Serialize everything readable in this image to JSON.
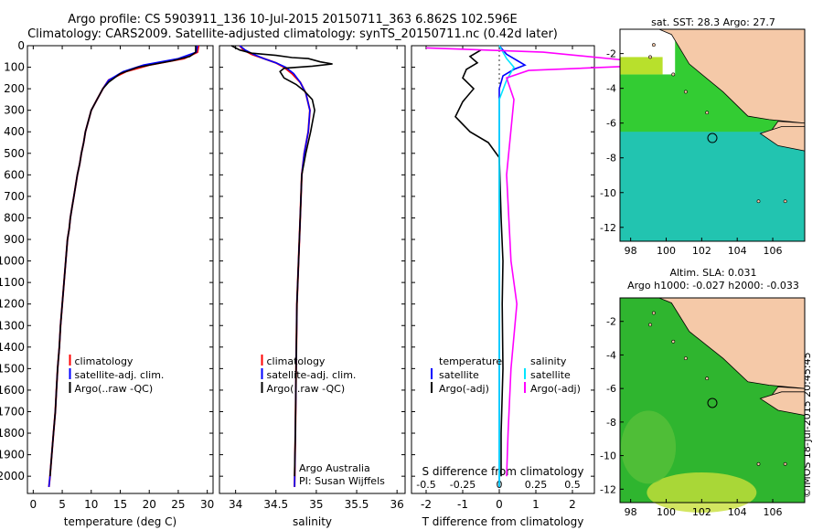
{
  "header": {
    "title_line1": "Argo profile: CS 5903911_136 10-Jul-2015 20150711_363 6.862S 102.596E",
    "title_line2": "Climatology: CARS2009. Satellite-adjusted climatology: synTS_20150711.nc (0.42d later)"
  },
  "colors": {
    "climatology": "#ff0000",
    "satellite": "#0000ff",
    "argo": "#000000",
    "sal_satellite": "#00e5ff",
    "sal_argo": "#ff00ff",
    "land": "#f5c9a8",
    "sst_green": "#33cc33",
    "sst_cyan": "#22c4b0",
    "sla_green": "#2fb52f"
  },
  "sidebar_text": "©IMOS 18-Jul-2015 20:45:45",
  "chart_data": [
    {
      "type": "line",
      "panel": "temperature",
      "xlabel": "temperature (deg C)",
      "ylabel": "",
      "xlim": [
        -1,
        31
      ],
      "ylim": [
        2080,
        0
      ],
      "xticks": [
        0,
        5,
        10,
        15,
        20,
        25,
        30
      ],
      "yticks": [
        0,
        100,
        200,
        300,
        400,
        500,
        600,
        700,
        800,
        900,
        1000,
        1100,
        1200,
        1300,
        1400,
        1500,
        1600,
        1700,
        1800,
        1900,
        2000
      ],
      "legend": [
        "climatology",
        "satellite-adj. clim.",
        "Argo(..raw -QC)"
      ],
      "legend_location": "lower-center",
      "series": [
        {
          "name": "climatology",
          "points": [
            [
              28.5,
              0
            ],
            [
              28.3,
              30
            ],
            [
              26,
              60
            ],
            [
              20,
              90
            ],
            [
              16,
              120
            ],
            [
              13,
              160
            ],
            [
              12,
              200
            ],
            [
              11,
              250
            ],
            [
              10,
              300
            ],
            [
              9.5,
              350
            ],
            [
              9,
              400
            ],
            [
              8.7,
              450
            ],
            [
              8.3,
              500
            ],
            [
              8,
              550
            ],
            [
              7.6,
              600
            ],
            [
              7.3,
              650
            ],
            [
              7,
              700
            ],
            [
              6.7,
              750
            ],
            [
              6.4,
              800
            ],
            [
              6.2,
              850
            ],
            [
              5.9,
              900
            ],
            [
              5.6,
              1000
            ],
            [
              5.3,
              1100
            ],
            [
              5,
              1200
            ],
            [
              4.7,
              1300
            ],
            [
              4.5,
              1400
            ],
            [
              4.2,
              1500
            ],
            [
              4,
              1600
            ],
            [
              3.8,
              1700
            ],
            [
              3.5,
              1800
            ],
            [
              3.2,
              1900
            ],
            [
              2.9,
              2000
            ],
            [
              2.7,
              2050
            ]
          ]
        },
        {
          "name": "satellite-adj. clim.",
          "points": [
            [
              28.3,
              0
            ],
            [
              28.1,
              30
            ],
            [
              25,
              60
            ],
            [
              19,
              90
            ],
            [
              15.5,
              120
            ],
            [
              13,
              160
            ],
            [
              12,
              200
            ],
            [
              11,
              250
            ],
            [
              10,
              300
            ],
            [
              9.5,
              350
            ],
            [
              9,
              400
            ],
            [
              8.7,
              450
            ],
            [
              8.3,
              500
            ],
            [
              8,
              550
            ],
            [
              7.6,
              600
            ],
            [
              7.3,
              650
            ],
            [
              7,
              700
            ],
            [
              6.7,
              750
            ],
            [
              6.4,
              800
            ],
            [
              6.2,
              850
            ],
            [
              5.9,
              900
            ],
            [
              5.6,
              1000
            ],
            [
              5.3,
              1100
            ],
            [
              5,
              1200
            ],
            [
              4.7,
              1300
            ],
            [
              4.5,
              1400
            ],
            [
              4.2,
              1500
            ],
            [
              4,
              1600
            ],
            [
              3.8,
              1700
            ],
            [
              3.5,
              1800
            ],
            [
              3.2,
              1900
            ],
            [
              2.9,
              2000
            ],
            [
              2.7,
              2050
            ]
          ]
        },
        {
          "name": "Argo(..raw -QC)",
          "points": [
            [
              28,
              0
            ],
            [
              28,
              30
            ],
            [
              27,
              50
            ],
            [
              24,
              70
            ],
            [
              18,
              100
            ],
            [
              15,
              130
            ],
            [
              13,
              170
            ],
            [
              12,
              200
            ],
            [
              11,
              250
            ],
            [
              10,
              300
            ],
            [
              9.5,
              350
            ],
            [
              9,
              400
            ],
            [
              8.7,
              450
            ],
            [
              8.3,
              500
            ],
            [
              8,
              550
            ],
            [
              7.6,
              600
            ],
            [
              7.3,
              650
            ],
            [
              7,
              700
            ],
            [
              6.7,
              750
            ],
            [
              6.4,
              800
            ],
            [
              6.2,
              850
            ],
            [
              5.9,
              900
            ],
            [
              5.6,
              1000
            ],
            [
              5.3,
              1100
            ],
            [
              5,
              1200
            ],
            [
              4.7,
              1300
            ],
            [
              4.5,
              1400
            ],
            [
              4.2,
              1500
            ],
            [
              4,
              1600
            ],
            [
              3.8,
              1700
            ],
            [
              3.5,
              1800
            ],
            [
              3.2,
              1900
            ],
            [
              2.9,
              2000
            ]
          ]
        }
      ]
    },
    {
      "type": "line",
      "panel": "salinity",
      "xlabel": "salinity",
      "ylabel": "",
      "xlim": [
        33.8,
        36.1
      ],
      "ylim": [
        2080,
        0
      ],
      "xticks": [
        34,
        34.5,
        35,
        35.5,
        36
      ],
      "xticklabels": [
        "34",
        "34.5",
        "35",
        "35.5",
        "36"
      ],
      "legend": [
        "climatology",
        "satellite-adj. clim.",
        "Argo(..raw -QC)"
      ],
      "legend_location": "lower-center",
      "annotation": [
        "Argo Australia",
        "PI: Susan Wijffels"
      ],
      "series": [
        {
          "name": "climatology",
          "points": [
            [
              34.05,
              0
            ],
            [
              34.1,
              20
            ],
            [
              34.2,
              40
            ],
            [
              34.35,
              60
            ],
            [
              34.5,
              80
            ],
            [
              34.6,
              100
            ],
            [
              34.7,
              130
            ],
            [
              34.8,
              170
            ],
            [
              34.87,
              220
            ],
            [
              34.92,
              300
            ],
            [
              34.9,
              400
            ],
            [
              34.85,
              500
            ],
            [
              34.82,
              600
            ],
            [
              34.8,
              800
            ],
            [
              34.78,
              1000
            ],
            [
              34.76,
              1200
            ],
            [
              34.75,
              1500
            ],
            [
              34.74,
              1800
            ],
            [
              34.73,
              2050
            ]
          ]
        },
        {
          "name": "satellite-adj. clim.",
          "points": [
            [
              34.05,
              0
            ],
            [
              34.12,
              20
            ],
            [
              34.22,
              40
            ],
            [
              34.35,
              60
            ],
            [
              34.5,
              80
            ],
            [
              34.62,
              100
            ],
            [
              34.72,
              130
            ],
            [
              34.8,
              170
            ],
            [
              34.87,
              220
            ],
            [
              34.92,
              300
            ],
            [
              34.9,
              400
            ],
            [
              34.85,
              500
            ],
            [
              34.82,
              600
            ],
            [
              34.8,
              800
            ],
            [
              34.78,
              1000
            ],
            [
              34.76,
              1200
            ],
            [
              34.75,
              1500
            ],
            [
              34.74,
              1800
            ],
            [
              34.73,
              2050
            ]
          ]
        },
        {
          "name": "Argo(..raw -QC)",
          "points": [
            [
              33.95,
              0
            ],
            [
              34.0,
              10
            ],
            [
              34.05,
              20
            ],
            [
              34.2,
              35
            ],
            [
              34.5,
              45
            ],
            [
              34.7,
              55
            ],
            [
              34.9,
              60
            ],
            [
              35.05,
              75
            ],
            [
              35.2,
              85
            ],
            [
              34.95,
              95
            ],
            [
              34.6,
              105
            ],
            [
              34.55,
              120
            ],
            [
              34.6,
              150
            ],
            [
              34.75,
              180
            ],
            [
              34.85,
              210
            ],
            [
              34.95,
              250
            ],
            [
              34.98,
              300
            ],
            [
              34.93,
              400
            ],
            [
              34.87,
              500
            ],
            [
              34.82,
              600
            ],
            [
              34.8,
              800
            ],
            [
              34.78,
              1000
            ],
            [
              34.76,
              1200
            ],
            [
              34.75,
              1500
            ],
            [
              34.74,
              1800
            ],
            [
              34.73,
              2000
            ]
          ]
        }
      ]
    },
    {
      "type": "line",
      "panel": "difference",
      "xlabel": "T difference from climatology",
      "x2label": "S difference from climatology",
      "xlim": [
        -2.4,
        2.6
      ],
      "ylim": [
        2080,
        0
      ],
      "xticks": [
        -2,
        -1,
        0,
        1,
        2
      ],
      "x2ticks": [
        -0.5,
        -0.25,
        0,
        0.25,
        0.5
      ],
      "legend_temperature": [
        "temperature",
        "satellite",
        "Argo(-adj)"
      ],
      "legend_salinity": [
        "salinity",
        "satellite",
        "Argo(-adj)"
      ],
      "series": [
        {
          "name": "satellite",
          "points": [
            [
              0,
              0
            ],
            [
              0.2,
              40
            ],
            [
              0.5,
              70
            ],
            [
              0.7,
              90
            ],
            [
              0.4,
              110
            ],
            [
              0.1,
              140
            ],
            [
              0,
              200
            ],
            [
              0,
              2050
            ]
          ]
        },
        {
          "name": "Argo(-adj)",
          "points": [
            [
              -0.5,
              20
            ],
            [
              -0.8,
              50
            ],
            [
              -0.6,
              80
            ],
            [
              -0.9,
              110
            ],
            [
              -1.0,
              150
            ],
            [
              -0.7,
              200
            ],
            [
              -1.0,
              260
            ],
            [
              -1.2,
              330
            ],
            [
              -0.8,
              400
            ],
            [
              -0.3,
              450
            ],
            [
              0,
              520
            ],
            [
              0.05,
              800
            ],
            [
              0.1,
              1000
            ],
            [
              0.08,
              1200
            ],
            [
              0.1,
              1500
            ],
            [
              0.05,
              1800
            ],
            [
              0.05,
              2000
            ]
          ]
        },
        {
          "name": "satellite",
          "points": [
            [
              0,
              0
            ],
            [
              0.05,
              60
            ],
            [
              0.1,
              100
            ],
            [
              0.05,
              160
            ],
            [
              0,
              250
            ],
            [
              0,
              2050
            ]
          ]
        },
        {
          "name": "Argo(-adj)",
          "points": [
            [
              -0.5,
              10
            ],
            [
              0.3,
              30
            ],
            [
              0.9,
              70
            ],
            [
              1.5,
              80
            ],
            [
              0.9,
              95
            ],
            [
              0.2,
              115
            ],
            [
              0.05,
              150
            ],
            [
              0.1,
              250
            ],
            [
              0.05,
              600
            ],
            [
              0.08,
              1000
            ],
            [
              0.12,
              1200
            ],
            [
              0.08,
              1500
            ],
            [
              0.06,
              1800
            ],
            [
              0.05,
              2000
            ]
          ]
        }
      ]
    }
  ],
  "maps": [
    {
      "title": "sat. SST: 28.3 Argo: 27.7",
      "xticks": [
        "98",
        "100",
        "102",
        "104",
        "106"
      ],
      "yticks": [
        "-2",
        "-4",
        "-6",
        "-8",
        "-10",
        "-12"
      ],
      "lon_range": [
        97.4,
        107.8
      ],
      "lat_range": [
        -12.8,
        -0.6
      ],
      "marker_lon": 102.6,
      "marker_lat": -6.86
    },
    {
      "title1": "Altim. SLA: 0.031",
      "title2": "Argo h1000: -0.027 h2000: -0.033",
      "xticks": [
        "98",
        "100",
        "102",
        "104",
        "106"
      ],
      "yticks": [
        "-2",
        "-4",
        "-6",
        "-8",
        "-10",
        "-12"
      ],
      "lon_range": [
        97.4,
        107.8
      ],
      "lat_range": [
        -12.8,
        -0.6
      ],
      "marker_lon": 102.6,
      "marker_lat": -6.86
    }
  ]
}
